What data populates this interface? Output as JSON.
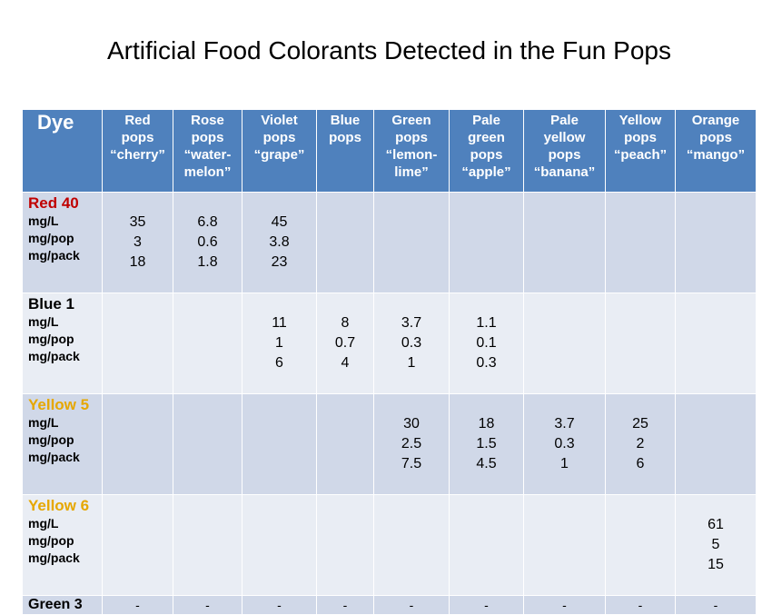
{
  "title": "Artificial Food Colorants Detected in the Fun Pops",
  "colors": {
    "header_bg": "#4f81bd",
    "row_odd": "#d0d8e8",
    "row_even": "#e9edf4",
    "red40": "#c00000",
    "blue1": "#000000",
    "yellow5": "#e6a700",
    "yellow6": "#e6a700",
    "green3": "#000000"
  },
  "header": {
    "dye": "Dye",
    "columns": [
      {
        "lines": [
          "Red",
          "pops",
          "“cherry”"
        ]
      },
      {
        "lines": [
          "Rose",
          "pops",
          "“water-",
          "melon”"
        ]
      },
      {
        "lines": [
          "Violet",
          "pops",
          "“grape”"
        ]
      },
      {
        "lines": [
          "Blue",
          "pops"
        ]
      },
      {
        "lines": [
          "Green",
          "pops",
          "“lemon-",
          "lime”"
        ]
      },
      {
        "lines": [
          "Pale",
          "green",
          "pops",
          "“apple”"
        ]
      },
      {
        "lines": [
          "Pale",
          "yellow",
          "pops",
          "“banana”"
        ]
      },
      {
        "lines": [
          "Yellow",
          "pops",
          "“peach”"
        ]
      },
      {
        "lines": [
          "Orange",
          "pops",
          "“mango”"
        ]
      }
    ]
  },
  "units": [
    "mg/L",
    "mg/pop",
    "mg/pack"
  ],
  "rows": [
    {
      "dye": "Red 40",
      "color_key": "red40",
      "cells": [
        [
          "35",
          "3",
          "18"
        ],
        [
          "6.8",
          "0.6",
          "1.8"
        ],
        [
          "45",
          "3.8",
          "23"
        ],
        [],
        [],
        [],
        [],
        [],
        []
      ]
    },
    {
      "dye": "Blue 1",
      "color_key": "blue1",
      "cells": [
        [],
        [],
        [
          "11",
          "1",
          "6"
        ],
        [
          "8",
          "0.7",
          "4"
        ],
        [
          "3.7",
          "0.3",
          "1"
        ],
        [
          "1.1",
          "0.1",
          "0.3"
        ],
        [],
        [],
        []
      ]
    },
    {
      "dye": "Yellow 5",
      "color_key": "yellow5",
      "cells": [
        [],
        [],
        [],
        [],
        [
          "30",
          "2.5",
          "7.5"
        ],
        [
          "18",
          "1.5",
          "4.5"
        ],
        [
          "3.7",
          "0.3",
          "1"
        ],
        [
          "25",
          "2",
          "6"
        ],
        []
      ]
    },
    {
      "dye": "Yellow 6",
      "color_key": "yellow6",
      "cells": [
        [],
        [],
        [],
        [],
        [],
        [],
        [],
        [],
        [
          "61",
          "5",
          "15"
        ]
      ]
    }
  ],
  "last_row": {
    "dye": "Green 3",
    "cells": [
      "-",
      "-",
      "-",
      "-",
      "-",
      "-",
      "-",
      "-",
      "-"
    ]
  }
}
